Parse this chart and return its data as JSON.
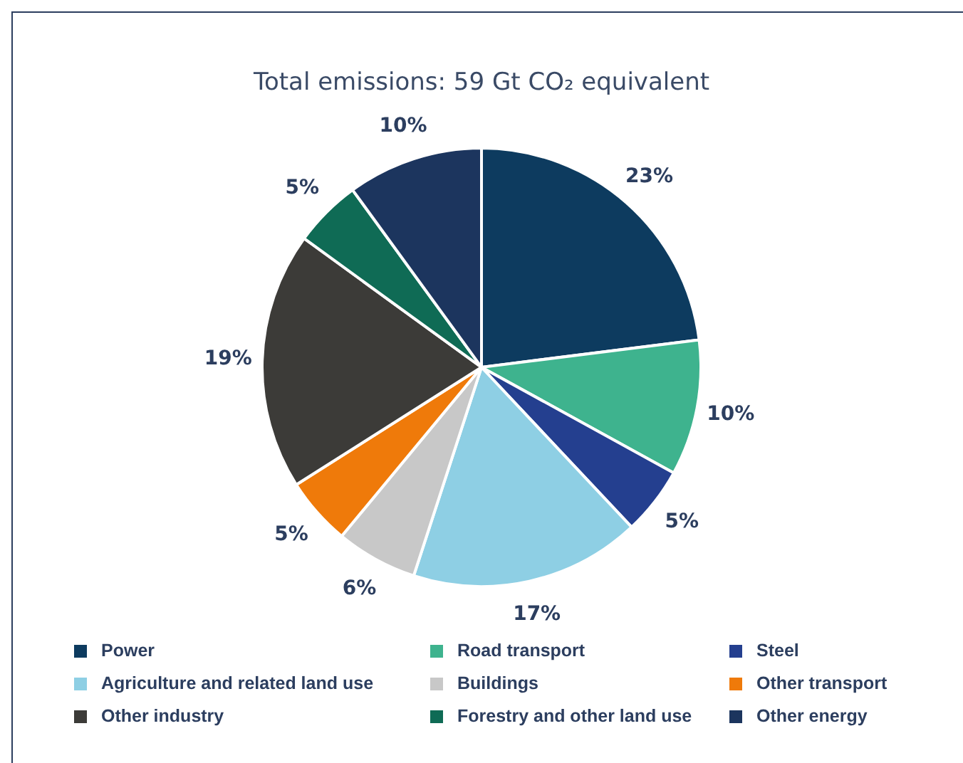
{
  "chart_data": {
    "type": "pie",
    "title": "Total emissions: 59 Gt CO₂ equivalent",
    "categories": [
      "Power",
      "Road transport",
      "Steel",
      "Agriculture and related land use",
      "Buildings",
      "Other transport",
      "Other industry",
      "Forestry and other land use",
      "Other energy"
    ],
    "values": [
      23,
      10,
      5,
      17,
      6,
      5,
      19,
      5,
      10
    ],
    "colors": [
      "#0d3b5f",
      "#3eb38e",
      "#243f8f",
      "#8ecfe4",
      "#c8c8c8",
      "#ef7a0a",
      "#3c3b38",
      "#0f6b55",
      "#1c355e"
    ],
    "value_labels": [
      "23%",
      "10%",
      "5%",
      "17%",
      "6%",
      "5%",
      "19%",
      "5%",
      "10%"
    ],
    "legend": "bottom"
  }
}
